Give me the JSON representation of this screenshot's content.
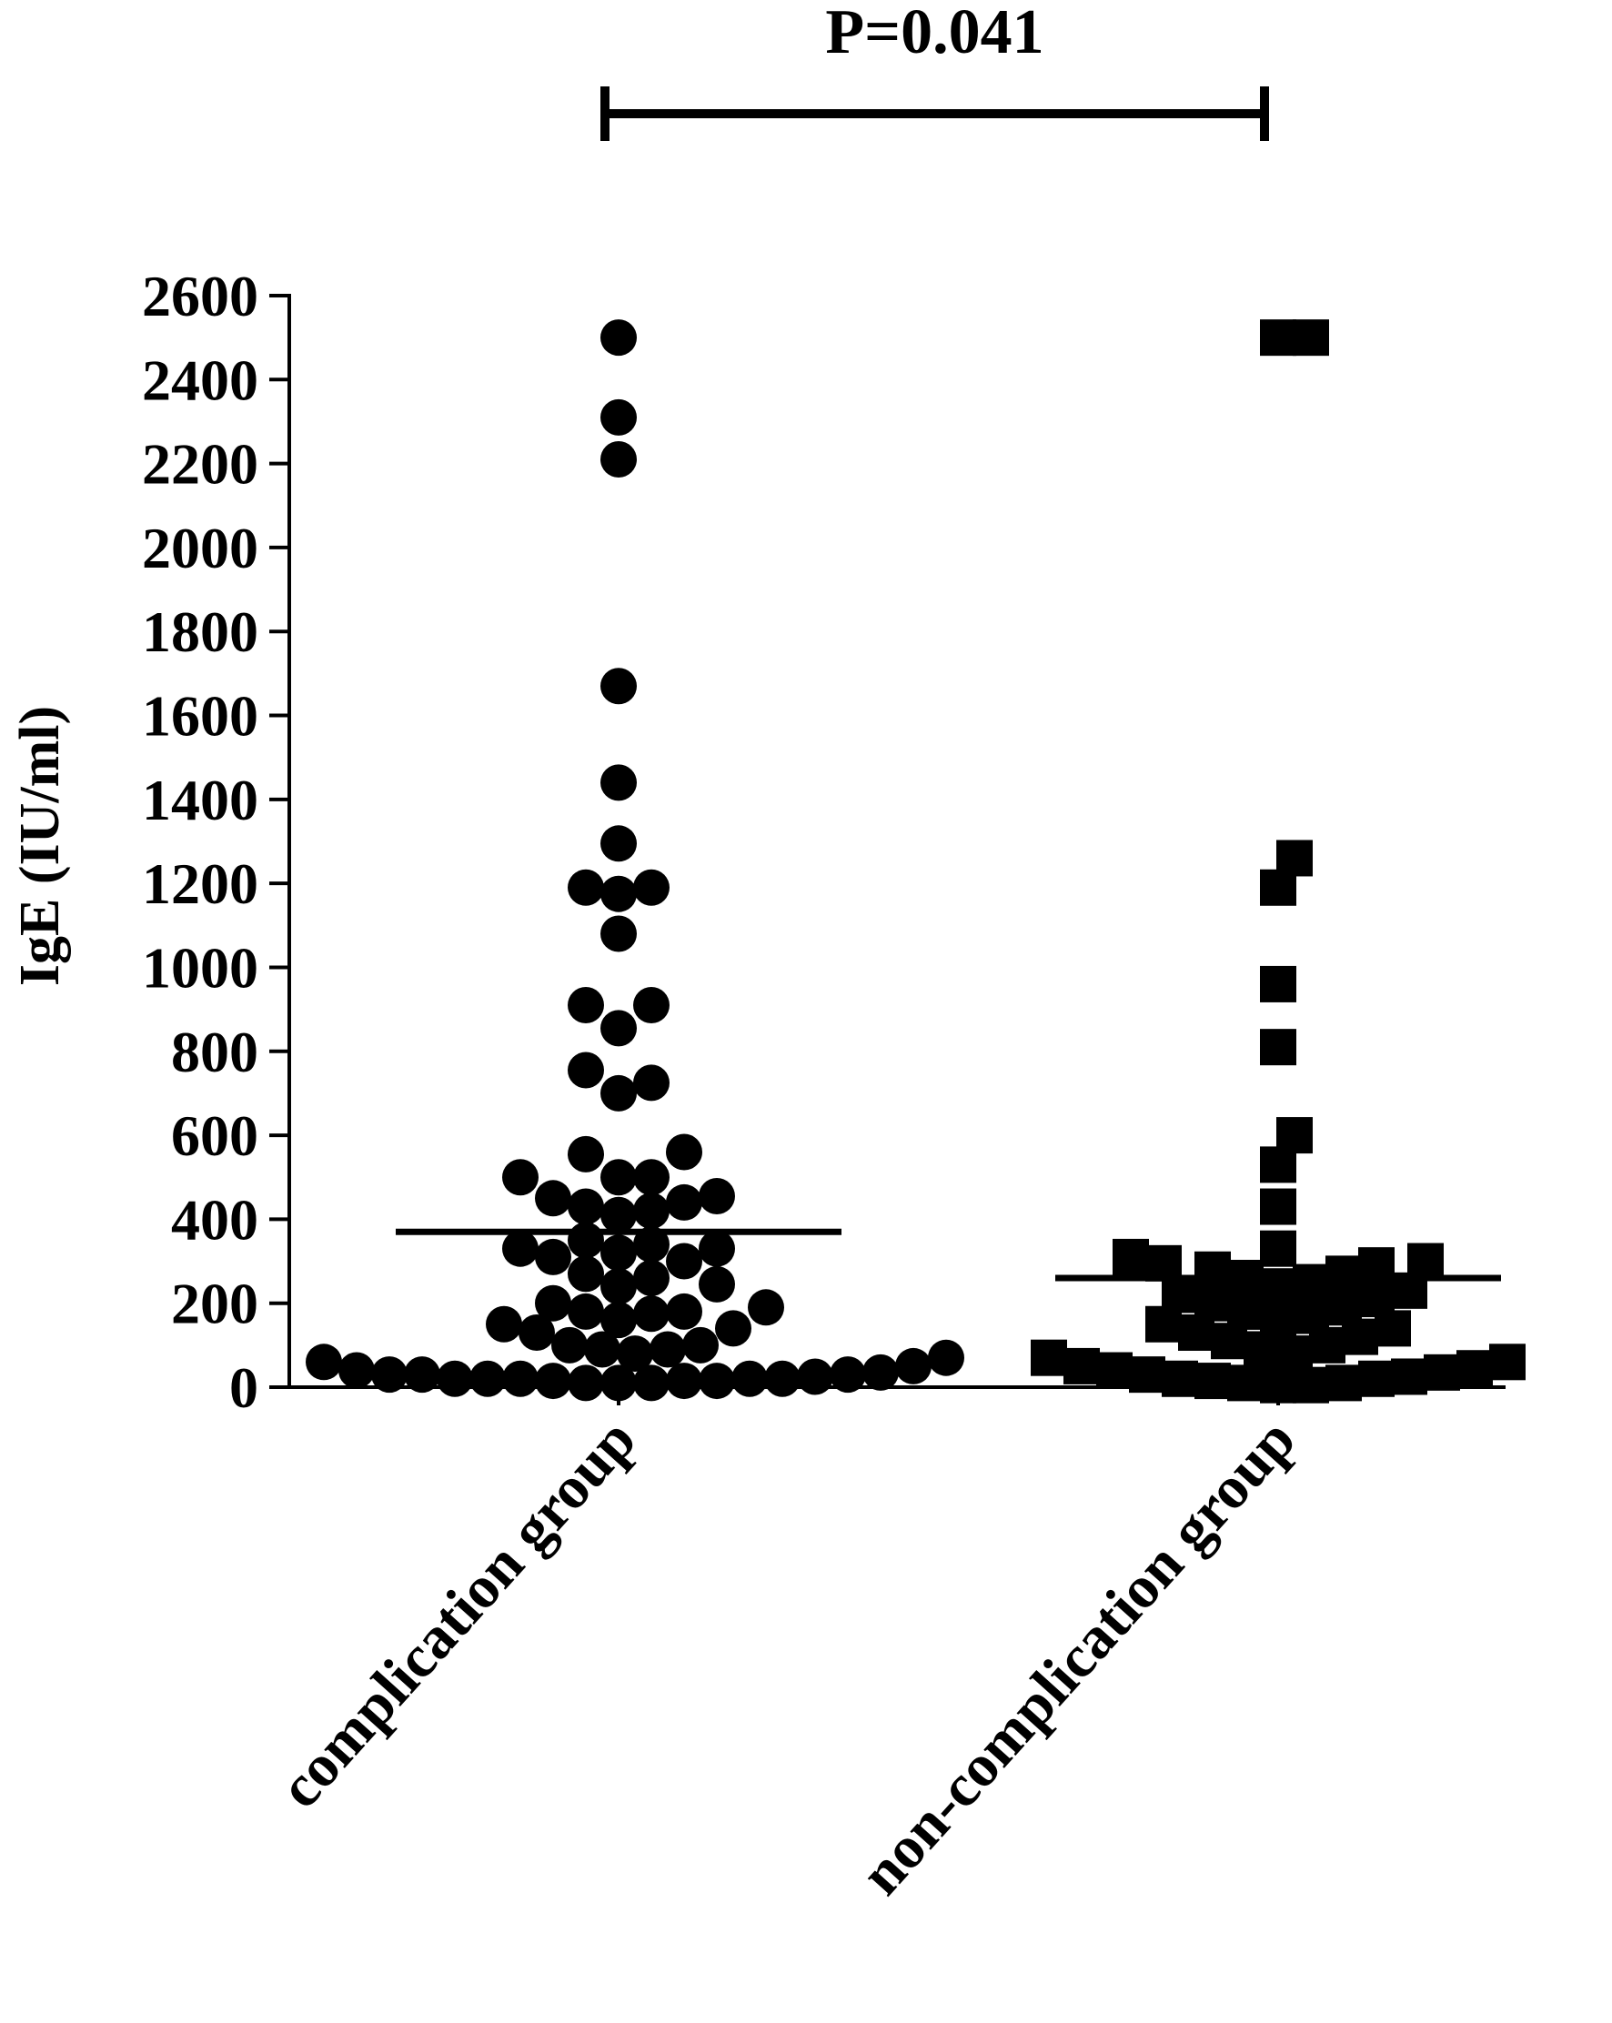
{
  "chart_data": {
    "type": "scatter",
    "title": "",
    "xlabel": "",
    "ylabel": "IgE (IU/ml)",
    "ylim": [
      0,
      2600
    ],
    "yticks": [
      0,
      200,
      400,
      600,
      800,
      1000,
      1200,
      1400,
      1600,
      1800,
      2000,
      2200,
      2400,
      2600
    ],
    "grid": false,
    "legend": "none",
    "categories": [
      "complication group",
      "non-complication group"
    ],
    "annotation": {
      "text": "P=0.041",
      "between": [
        "complication group",
        "non-complication group"
      ]
    },
    "series": [
      {
        "category": "complication group",
        "marker": "circle",
        "color": "#000000",
        "mean": 370,
        "values": [
          2500,
          2310,
          2210,
          1670,
          1440,
          1295,
          1190,
          1175,
          1190,
          1080,
          910,
          910,
          855,
          755,
          725,
          700,
          560,
          555,
          500,
          500,
          500,
          450,
          440,
          455,
          430,
          420,
          410,
          350,
          340,
          330,
          330,
          320,
          310,
          300,
          270,
          260,
          245,
          240,
          200,
          190,
          180,
          180,
          175,
          160,
          150,
          140,
          130,
          100,
          100,
          90,
          90,
          80,
          70,
          60,
          50,
          40,
          35,
          30,
          30,
          30,
          25,
          20,
          20,
          20,
          20,
          20,
          15,
          15,
          15,
          10,
          10,
          10
        ]
      },
      {
        "category": "non-complication group",
        "marker": "square",
        "color": "#000000",
        "mean": 260,
        "values": [
          2500,
          2500,
          1260,
          1190,
          960,
          810,
          600,
          530,
          430,
          330,
          310,
          300,
          295,
          290,
          280,
          270,
          260,
          250,
          240,
          230,
          220,
          210,
          200,
          190,
          180,
          170,
          160,
          150,
          140,
          130,
          120,
          110,
          100,
          90,
          80,
          70,
          60,
          50,
          45,
          40,
          35,
          30,
          25,
          20,
          20,
          15,
          10,
          10,
          5,
          5
        ]
      }
    ]
  }
}
